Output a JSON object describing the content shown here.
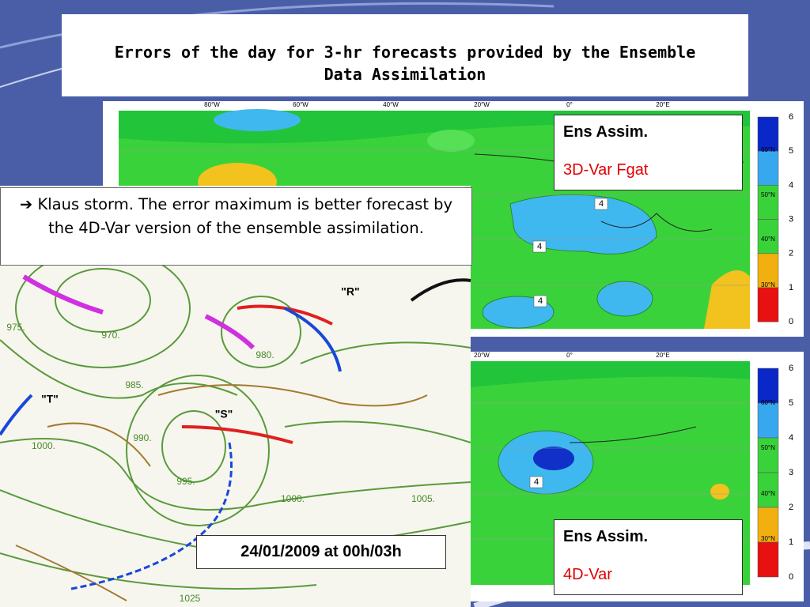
{
  "title": "Errors of the day for 3-hr forecasts provided by the Ensemble Data Assimilation",
  "callout": {
    "icon": "➔",
    "text": "Klaus storm. The error maximum is better forecast by the 4D-Var version of the ensemble assimilation."
  },
  "synoptic_map": {
    "date": "24/01/2009 at 00h/03h",
    "labels": [
      "\"R\"",
      "\"T\"",
      "\"S\""
    ],
    "isobars": [
      "975.",
      "970.",
      "980.",
      "985.",
      "1000.",
      "990.",
      "995.",
      "1000.",
      "1005.",
      "1025"
    ]
  },
  "error_maps": [
    {
      "label_line1": "Ens Assim.",
      "label_line2": "3D-Var Fgat",
      "lon_labels": [
        "80°W",
        "60°W",
        "40°W",
        "20°W",
        "0°",
        "20°E"
      ],
      "lat_labels": [
        "60°N",
        "50°N",
        "40°N",
        "30°N"
      ],
      "contour_labels": [
        "4",
        "4",
        "4"
      ],
      "colorbar": [
        "6",
        "5",
        "4",
        "3",
        "2",
        "1",
        "0"
      ]
    },
    {
      "label_line1": "Ens Assim.",
      "label_line2": "4D-Var",
      "lon_labels": [
        "20°W",
        "0°",
        "20°E"
      ],
      "lat_labels": [
        "60°N",
        "50°N",
        "40°N",
        "30°N"
      ],
      "contour_labels": [
        "4"
      ],
      "colorbar": [
        "6",
        "5",
        "4",
        "3",
        "2",
        "1",
        "0"
      ]
    }
  ]
}
